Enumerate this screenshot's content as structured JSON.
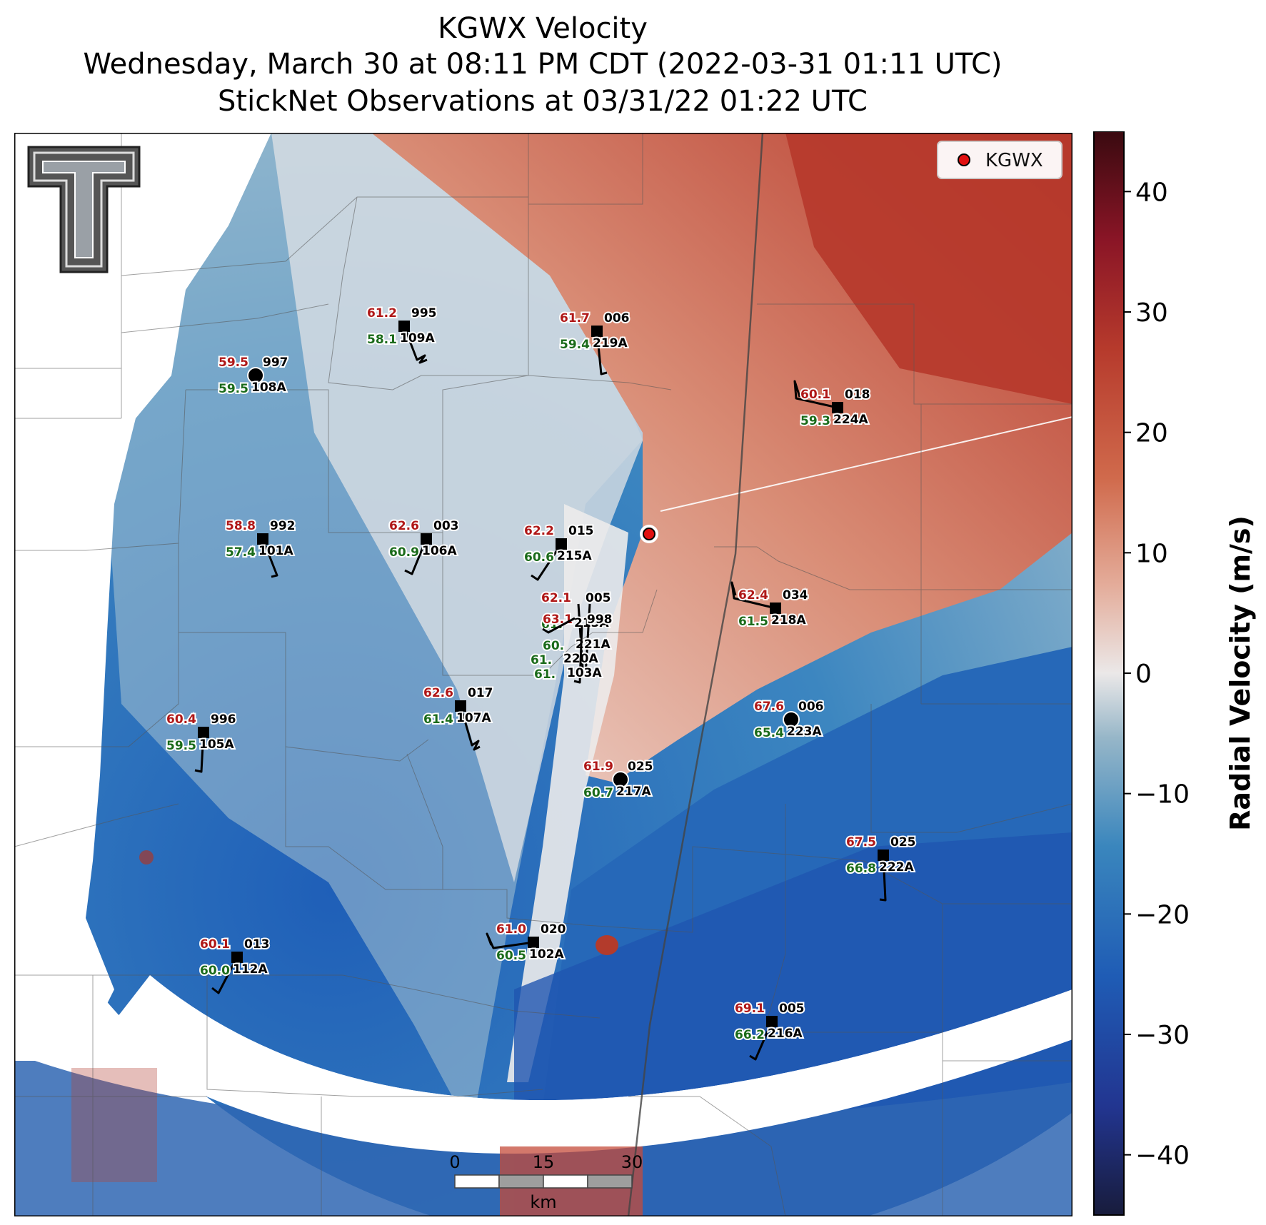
{
  "title": {
    "line1": "KGWX Velocity",
    "line2": "Wednesday, March 30 at 08:11 PM CDT (2022-03-31 01:11 UTC)",
    "line3": "StickNet Observations at 03/31/22 01:22 UTC"
  },
  "legend": {
    "label": "KGWX",
    "placement": "top-right",
    "marker_color": "#e11010"
  },
  "radar": {
    "name": "KGWX"
  },
  "colorbar": {
    "label": "Radial Velocity (m/s)",
    "range": [
      -45,
      45
    ],
    "ticks": [
      "40",
      "30",
      "20",
      "10",
      "0",
      "−10",
      "−20",
      "−30",
      "−40"
    ],
    "tick_values": [
      40,
      30,
      20,
      10,
      0,
      -10,
      -20,
      -30,
      -40
    ],
    "colors": [
      "#181c3c",
      "#2238a0",
      "#1f60b8",
      "#3a88c0",
      "#8fb3c8",
      "#e8e6e6",
      "#e0a896",
      "#cf5f42",
      "#a52a22",
      "#3a0a10"
    ]
  },
  "scale_bar": {
    "ticks": [
      "0",
      "15",
      "30"
    ],
    "unit": "km"
  },
  "stations": [
    {
      "id": "109A",
      "temp": "61.2",
      "dew": "58.1",
      "pres": "995"
    },
    {
      "id": "219A",
      "temp": "61.7",
      "dew": "59.4",
      "pres": "006"
    },
    {
      "id": "108A",
      "temp": "59.5",
      "dew": "59.5",
      "pres": "997"
    },
    {
      "id": "224A",
      "temp": "60.1",
      "dew": "59.3",
      "pres": "018"
    },
    {
      "id": "101A",
      "temp": "58.8",
      "dew": "57.4",
      "pres": "992"
    },
    {
      "id": "106A",
      "temp": "62.6",
      "dew": "60.9",
      "pres": "003"
    },
    {
      "id": "215A",
      "temp": "62.2",
      "dew": "60.6",
      "pres": "015"
    },
    {
      "id": "218A",
      "temp": "62.4",
      "dew": "61.5",
      "pres": "034"
    },
    {
      "id": "107A",
      "temp": "62.6",
      "dew": "61.4",
      "pres": "017"
    },
    {
      "id": "105A",
      "temp": "60.4",
      "dew": "59.5",
      "pres": "996"
    },
    {
      "id": "223A",
      "temp": "67.6",
      "dew": "65.4",
      "pres": "006"
    },
    {
      "id": "217A",
      "temp": "61.9",
      "dew": "60.7",
      "pres": "025"
    },
    {
      "id": "222A",
      "temp": "67.5",
      "dew": "66.8",
      "pres": "025"
    },
    {
      "id": "102A",
      "temp": "61.0",
      "dew": "60.5",
      "pres": "020"
    },
    {
      "id": "112A",
      "temp": "60.1",
      "dew": "60.0",
      "pres": "013"
    },
    {
      "id": "216A",
      "temp": "69.1",
      "dew": "66.2",
      "pres": "005"
    },
    {
      "id": "213A",
      "temp": "62.1",
      "dew": "61.",
      "pres": "005"
    },
    {
      "id": "221A",
      "temp": "63.1",
      "dew": "60.",
      "pres": "998"
    },
    {
      "id": "220A",
      "temp": "",
      "dew": "61.",
      "pres": ""
    },
    {
      "id": "103A",
      "temp": "",
      "dew": "61.",
      "pres": ""
    }
  ]
}
